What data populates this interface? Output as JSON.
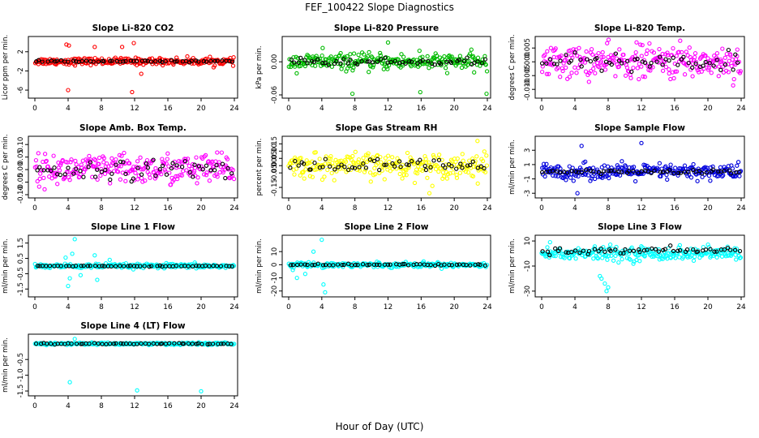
{
  "title": "FEF_100422  Slope Diagnostics",
  "xlabel": "Hour of Day (UTC)",
  "chart_data": [
    {
      "type": "scatter",
      "title": "Slope Li-820 CO2",
      "ylabel": "Licor ppm per min.",
      "xlim": [
        0,
        24
      ],
      "ylim": [
        -7,
        4.5
      ],
      "yticks": [
        2,
        -2,
        -6
      ],
      "ytick_labels": [
        "2",
        "-2",
        "-6"
      ],
      "xticks": [
        0,
        4,
        8,
        12,
        16,
        20,
        24
      ],
      "series": [
        {
          "color": "#ff0000",
          "center": 0,
          "spread": 0.6,
          "outliers": [
            [
              3.8,
              3.5
            ],
            [
              4.1,
              3.3
            ],
            [
              7.2,
              3.0
            ],
            [
              11.9,
              3.8
            ],
            [
              11.7,
              -6.4
            ],
            [
              4.0,
              -6.0
            ],
            [
              12.8,
              -2.6
            ],
            [
              10.5,
              3.0
            ]
          ]
        },
        {
          "color": "#000000",
          "center": 0,
          "spread": 0.15,
          "outliers": []
        }
      ]
    },
    {
      "type": "scatter",
      "title": "Slope Li-820 Pressure",
      "ylabel": "kPa per min.",
      "xlim": [
        0,
        24
      ],
      "ylim": [
        -0.06,
        0.04
      ],
      "yticks": [
        0.0,
        -0.06
      ],
      "ytick_labels": [
        "0.00",
        "-0.06"
      ],
      "xticks": [
        0,
        4,
        8,
        12,
        16,
        20,
        24
      ],
      "series": [
        {
          "color": "#00bb00",
          "center": 0,
          "spread": 0.012,
          "outliers": [
            [
              12.0,
              0.035
            ],
            [
              4.1,
              0.025
            ],
            [
              7.7,
              -0.058
            ],
            [
              15.9,
              -0.055
            ],
            [
              23.9,
              -0.058
            ],
            [
              15.8,
              0.02
            ]
          ]
        },
        {
          "color": "#000000",
          "center": 0,
          "spread": 0.005,
          "outliers": []
        }
      ]
    },
    {
      "type": "scatter",
      "title": "Slope Li-820 Temp.",
      "ylabel": "degrees C per min.",
      "xlim": [
        0,
        24
      ],
      "ylim": [
        -0.012,
        0.008
      ],
      "yticks": [
        0.005,
        0.0,
        -0.005,
        -0.01
      ],
      "ytick_labels": [
        "0.005",
        "0.000",
        "-0.005",
        "-0.010"
      ],
      "xticks": [
        0,
        4,
        8,
        12,
        16,
        20,
        24
      ],
      "series": [
        {
          "color": "#ff00ff",
          "center": 0,
          "spread": 0.005,
          "outliers": []
        },
        {
          "color": "#000000",
          "center": 0,
          "spread": 0.003,
          "outliers": []
        }
      ]
    },
    {
      "type": "scatter",
      "title": "Slope Amb. Box Temp.",
      "ylabel": "degrees C per min.",
      "xlim": [
        0,
        24
      ],
      "ylim": [
        -0.1,
        0.12
      ],
      "yticks": [
        0.1,
        0.05,
        0.0,
        -0.05,
        -0.1
      ],
      "ytick_labels": [
        "0.10",
        "0.05",
        "0.00",
        "-0.05",
        "-0.10"
      ],
      "xticks": [
        0,
        4,
        8,
        12,
        16,
        20,
        24
      ],
      "series": [
        {
          "color": "#ff00ff",
          "center": 0,
          "spread": 0.05,
          "outliers": []
        },
        {
          "color": "#000000",
          "center": 0,
          "spread": 0.03,
          "outliers": []
        }
      ]
    },
    {
      "type": "scatter",
      "title": "Slope Gas Stream RH",
      "ylabel": "percent per min.",
      "xlim": [
        0,
        24
      ],
      "ylim": [
        -0.2,
        0.18
      ],
      "yticks": [
        0.15,
        0.1,
        0.05,
        0.0,
        -0.05,
        -0.15
      ],
      "ytick_labels": [
        "0.15",
        "0.10",
        "0.05",
        "0.00",
        "-0.05",
        "-0.15"
      ],
      "xticks": [
        0,
        4,
        8,
        12,
        16,
        20,
        24
      ],
      "series": [
        {
          "color": "#ffff00",
          "center": 0,
          "spread": 0.07,
          "outliers": [
            [
              22.8,
              0.17
            ],
            [
              17.0,
              -0.19
            ]
          ]
        },
        {
          "color": "#000000",
          "center": 0,
          "spread": 0.04,
          "outliers": []
        }
      ]
    },
    {
      "type": "scatter",
      "title": "Slope Sample Flow",
      "ylabel": "ml/min per min.",
      "xlim": [
        0,
        24
      ],
      "ylim": [
        -3.2,
        4.5
      ],
      "yticks": [
        3,
        1,
        -1,
        -3
      ],
      "ytick_labels": [
        "3",
        "1",
        "-1",
        "-3"
      ],
      "xticks": [
        0,
        4,
        8,
        12,
        16,
        20,
        24
      ],
      "series": [
        {
          "color": "#0000dd",
          "center": 0,
          "spread": 0.9,
          "outliers": [
            [
              12.0,
              4.0
            ],
            [
              4.8,
              3.6
            ],
            [
              4.3,
              -3.0
            ]
          ]
        },
        {
          "color": "#000000",
          "center": 0,
          "spread": 0.25,
          "outliers": []
        }
      ]
    },
    {
      "type": "scatter",
      "title": "Slope Line 1 Flow",
      "ylabel": "ml/min per min.",
      "xlim": [
        0,
        24
      ],
      "ylim": [
        -1.8,
        1.8
      ],
      "yticks": [
        1.5,
        0.5,
        -0.5,
        -1.5
      ],
      "ytick_labels": [
        "1.5",
        "0.5",
        "-0.5",
        "-1.5"
      ],
      "xticks": [
        0,
        4,
        8,
        12,
        16,
        20,
        24
      ],
      "series": [
        {
          "color": "#00ffff",
          "center": 0,
          "spread": 0.12,
          "outliers": [
            [
              4.8,
              1.75
            ],
            [
              4.0,
              -1.3
            ],
            [
              4.5,
              0.8
            ],
            [
              7.5,
              -0.9
            ],
            [
              5.5,
              -0.6
            ],
            [
              7.2,
              0.7
            ],
            [
              9.0,
              0.4
            ],
            [
              3.7,
              0.55
            ],
            [
              4.2,
              -0.8
            ]
          ]
        },
        {
          "color": "#000000",
          "center": 0,
          "spread": 0.02,
          "outliers": []
        }
      ]
    },
    {
      "type": "scatter",
      "title": "Slope Line 2 Flow",
      "ylabel": "ml/min per min.",
      "xlim": [
        0,
        24
      ],
      "ylim": [
        -22,
        20
      ],
      "yticks": [
        10,
        0,
        -10,
        -20
      ],
      "ytick_labels": [
        "10",
        "0",
        "-10",
        "-20"
      ],
      "xticks": [
        0,
        4,
        8,
        12,
        16,
        20,
        24
      ],
      "series": [
        {
          "color": "#00ffff",
          "center": 0,
          "spread": 1.5,
          "outliers": [
            [
              4.0,
              19.0
            ],
            [
              3.0,
              10.0
            ],
            [
              4.2,
              -15.0
            ],
            [
              4.4,
              -21.0
            ],
            [
              1.0,
              -10.0
            ],
            [
              2.0,
              -7.0
            ],
            [
              0.5,
              -4.0
            ]
          ]
        },
        {
          "color": "#000000",
          "center": 0,
          "spread": 0.5,
          "outliers": []
        }
      ]
    },
    {
      "type": "scatter",
      "title": "Slope Line 3 Flow",
      "ylabel": "ml/min per min.",
      "xlim": [
        0,
        24
      ],
      "ylim": [
        -32,
        12
      ],
      "yticks": [
        10,
        -10,
        -30
      ],
      "ytick_labels": [
        "10",
        "-10",
        "-30"
      ],
      "xticks": [
        0,
        4,
        8,
        12,
        16,
        20,
        24
      ],
      "series": [
        {
          "color": "#00ffff",
          "center": 0,
          "spread": 4.5,
          "outliers": [
            [
              7.8,
              -30.0
            ],
            [
              7.6,
              -24.0
            ],
            [
              7.2,
              -20.0
            ],
            [
              8.0,
              -27.0
            ],
            [
              7.0,
              -18.0
            ],
            [
              1.0,
              9.0
            ]
          ]
        },
        {
          "color": "#000000",
          "center": 2,
          "spread": 2.0,
          "outliers": []
        }
      ]
    },
    {
      "type": "scatter",
      "title": "Slope Line 4 (LT) Flow",
      "ylabel": "ml/min per min.",
      "xlim": [
        0,
        24
      ],
      "ylim": [
        -1.55,
        0.2
      ],
      "yticks": [
        -0.5,
        -1.0,
        -1.5
      ],
      "ytick_labels": [
        "-0.5",
        "-1.0",
        "-1.5"
      ],
      "xticks": [
        0,
        4,
        8,
        12,
        16,
        20,
        24
      ],
      "series": [
        {
          "color": "#00ffff",
          "center": 0,
          "spread": 0.03,
          "outliers": [
            [
              4.8,
              0.15
            ],
            [
              4.2,
              -1.22
            ],
            [
              12.3,
              -1.48
            ],
            [
              20.0,
              -1.51
            ]
          ]
        },
        {
          "color": "#000000",
          "center": 0,
          "spread": 0.015,
          "outliers": []
        }
      ]
    }
  ]
}
